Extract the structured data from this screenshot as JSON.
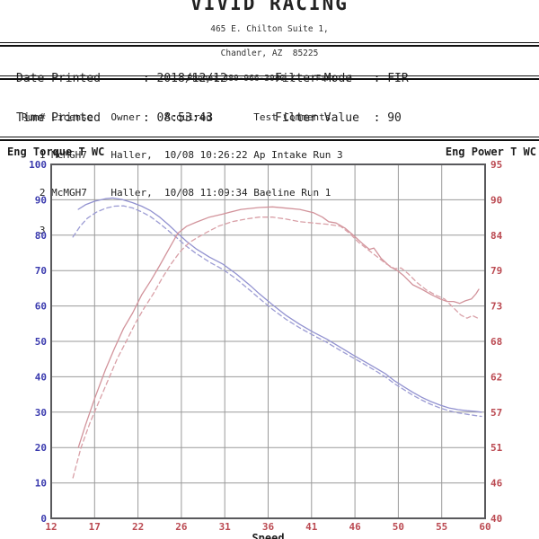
{
  "header": {
    "title": "VIVID RACING",
    "address_line1": "465 E. Chilton Suite 1,",
    "address_line2": "Chandler, AZ  85225",
    "phone_line": "Phone: 480-966-3040 /  - Fax:  /"
  },
  "print_info": {
    "date_line": "Date Printed      : 2018/12/12",
    "time_line": "Time Printed      : 08:53:43",
    "filter_mode_line": "Filter Mode   : FIR",
    "filter_value_line": "Filter Value  : 90"
  },
  "run_table": {
    "header_line": "Run# License   Owner    Acquired       Test Comments",
    "row1": "   1 McMGH7    Haller,  10/08 10:26:22 Ap Intake Run 3",
    "row2": "   2 McMGH7    Haller,  10/08 11:09:34 Baeline Run 1",
    "row3": "   3"
  },
  "chart_data": {
    "type": "line",
    "grid": true,
    "legend": "none",
    "x_axis": {
      "label": "Speed",
      "min": 12,
      "max": 60,
      "ticks_left_to_right": [
        12,
        17,
        22,
        26,
        31,
        36,
        41,
        46,
        50,
        55,
        60
      ],
      "tick_color": "#bb4a52"
    },
    "y_left": {
      "label": "Eng Torque T WC",
      "min": 0,
      "max": 100,
      "ticks_top_to_bottom": [
        100,
        90,
        80,
        70,
        60,
        50,
        40,
        30,
        20,
        10,
        0
      ],
      "tick_color": "#3a3aae",
      "label_color": "#3a3aae"
    },
    "y_right": {
      "label": "Eng Power T WC",
      "min": 40,
      "max": 95,
      "ticks_top_to_bottom": [
        95,
        90,
        84,
        79,
        73,
        68,
        62,
        57,
        51,
        46,
        40
      ],
      "tick_color": "#bb4a52",
      "label_color": "#bb4a52"
    },
    "grid_color": "#9a9a9a",
    "border_color": "#59595c",
    "series": [
      {
        "name": "Eng Torque Run 1",
        "axis": "left",
        "style": "solid",
        "color": "#9292d0",
        "points": [
          [
            15,
            87.3
          ],
          [
            15.8,
            88.6
          ],
          [
            16.8,
            89.6
          ],
          [
            18,
            90.3
          ],
          [
            18.8,
            90.5
          ],
          [
            19.8,
            90.1
          ],
          [
            21,
            89.2
          ],
          [
            22,
            88.2
          ],
          [
            23,
            86.9
          ],
          [
            24,
            85.1
          ],
          [
            25,
            82.9
          ],
          [
            26,
            80.5
          ],
          [
            27,
            78.2
          ],
          [
            28,
            76.2
          ],
          [
            29.5,
            73.8
          ],
          [
            31,
            71.8
          ],
          [
            32.5,
            69
          ],
          [
            34,
            65.8
          ],
          [
            35,
            63.5
          ],
          [
            36.5,
            60.3
          ],
          [
            38,
            57.3
          ],
          [
            39.5,
            54.8
          ],
          [
            41,
            52.6
          ],
          [
            42.5,
            50.6
          ],
          [
            44,
            48.3
          ],
          [
            45.5,
            46
          ],
          [
            47,
            43.8
          ],
          [
            48,
            42.3
          ],
          [
            49,
            40.8
          ],
          [
            50,
            38.8
          ],
          [
            51,
            37.2
          ],
          [
            52,
            35.6
          ],
          [
            53,
            34.2
          ],
          [
            54,
            33
          ],
          [
            55,
            32
          ],
          [
            56,
            31.2
          ],
          [
            57,
            30.7
          ],
          [
            58,
            30.4
          ],
          [
            59,
            30.2
          ],
          [
            59.6,
            30
          ]
        ]
      },
      {
        "name": "Eng Torque Run 2",
        "axis": "left",
        "style": "dashed",
        "color": "#9c9cd4",
        "points": [
          [
            14.4,
            79.5
          ],
          [
            15.2,
            82.5
          ],
          [
            16,
            84.8
          ],
          [
            17,
            86.5
          ],
          [
            18,
            87.6
          ],
          [
            19,
            88.2
          ],
          [
            20,
            88.3
          ],
          [
            21,
            87.7
          ],
          [
            22,
            86.6
          ],
          [
            23,
            85.2
          ],
          [
            24,
            83.3
          ],
          [
            25,
            81.2
          ],
          [
            26,
            79
          ],
          [
            27,
            76.8
          ],
          [
            28,
            74.9
          ],
          [
            29.5,
            72.4
          ],
          [
            31,
            70.3
          ],
          [
            32.5,
            67.6
          ],
          [
            34,
            64.4
          ],
          [
            35,
            62.2
          ],
          [
            36.5,
            59
          ],
          [
            38,
            56.2
          ],
          [
            39.5,
            53.8
          ],
          [
            41,
            51.7
          ],
          [
            42.5,
            49.7
          ],
          [
            44,
            47.4
          ],
          [
            45.5,
            45.2
          ],
          [
            47,
            43
          ],
          [
            48,
            41.5
          ],
          [
            49,
            39.9
          ],
          [
            50,
            38
          ],
          [
            51,
            36.4
          ],
          [
            52,
            34.8
          ],
          [
            53,
            33.4
          ],
          [
            54,
            32.2
          ],
          [
            55,
            31.2
          ],
          [
            56,
            30.4
          ],
          [
            57,
            29.8
          ],
          [
            58,
            29.4
          ],
          [
            59,
            29
          ],
          [
            59.6,
            28.8
          ]
        ]
      },
      {
        "name": "Eng Power Run 1",
        "axis": "right",
        "style": "solid",
        "color": "#d2939b",
        "points": [
          [
            15,
            51
          ],
          [
            15.8,
            54.5
          ],
          [
            16.8,
            58.6
          ],
          [
            18,
            63.1
          ],
          [
            19,
            66.4
          ],
          [
            20,
            69.5
          ],
          [
            21,
            71.9
          ],
          [
            22,
            74.7
          ],
          [
            23,
            76.9
          ],
          [
            24,
            79.3
          ],
          [
            25,
            81.8
          ],
          [
            26,
            84.3
          ],
          [
            27,
            85.4
          ],
          [
            28,
            86
          ],
          [
            29.5,
            86.8
          ],
          [
            31,
            87.3
          ],
          [
            33,
            88
          ],
          [
            35,
            88.3
          ],
          [
            36.5,
            88.4
          ],
          [
            38,
            88.2
          ],
          [
            39.5,
            88
          ],
          [
            41,
            87.5
          ],
          [
            42,
            86.8
          ],
          [
            42.7,
            86.1
          ],
          [
            43.5,
            85.9
          ],
          [
            44.5,
            85.1
          ],
          [
            45.5,
            83.9
          ],
          [
            46.5,
            82.6
          ],
          [
            47.2,
            81.8
          ],
          [
            47.7,
            82
          ],
          [
            48.5,
            80.4
          ],
          [
            49.5,
            79.1
          ],
          [
            50.3,
            78.5
          ],
          [
            51,
            77.7
          ],
          [
            52,
            76.3
          ],
          [
            53,
            75.6
          ],
          [
            54,
            74.8
          ],
          [
            55,
            74.1
          ],
          [
            55.8,
            73.7
          ],
          [
            56.5,
            73.7
          ],
          [
            57.2,
            73.4
          ],
          [
            57.8,
            73.8
          ],
          [
            58.5,
            74.1
          ],
          [
            59,
            74.9
          ],
          [
            59.3,
            75.6
          ]
        ]
      },
      {
        "name": "Eng Power Run 2",
        "axis": "right",
        "style": "dashed",
        "color": "#d9a0a7",
        "points": [
          [
            14.4,
            46.3
          ],
          [
            15.3,
            51
          ],
          [
            16.3,
            54.9
          ],
          [
            17.3,
            58.2
          ],
          [
            18.3,
            61.5
          ],
          [
            19.3,
            64.8
          ],
          [
            20.3,
            67.5
          ],
          [
            21.3,
            70.3
          ],
          [
            22.3,
            72.7
          ],
          [
            23.3,
            74.9
          ],
          [
            24.3,
            77.4
          ],
          [
            25.3,
            79.6
          ],
          [
            26.3,
            81.5
          ],
          [
            27.3,
            82.9
          ],
          [
            29,
            84.3
          ],
          [
            30.5,
            85.4
          ],
          [
            32,
            86.1
          ],
          [
            33.5,
            86.5
          ],
          [
            35,
            86.8
          ],
          [
            36.5,
            86.8
          ],
          [
            38,
            86.5
          ],
          [
            39.5,
            86.1
          ],
          [
            41,
            85.9
          ],
          [
            42.5,
            85.7
          ],
          [
            44,
            85.4
          ],
          [
            45,
            84.3
          ],
          [
            46,
            82.9
          ],
          [
            47,
            81.8
          ],
          [
            48,
            80.7
          ],
          [
            49,
            79.6
          ],
          [
            50,
            78.8
          ],
          [
            50.7,
            78.9
          ],
          [
            51.5,
            78
          ],
          [
            52.5,
            76.6
          ],
          [
            53.5,
            75.5
          ],
          [
            54.5,
            74.7
          ],
          [
            55.5,
            74.1
          ],
          [
            56.3,
            73
          ],
          [
            57.3,
            71.6
          ],
          [
            58,
            71.1
          ],
          [
            58.6,
            71.5
          ],
          [
            59.2,
            71.1
          ]
        ]
      }
    ]
  }
}
